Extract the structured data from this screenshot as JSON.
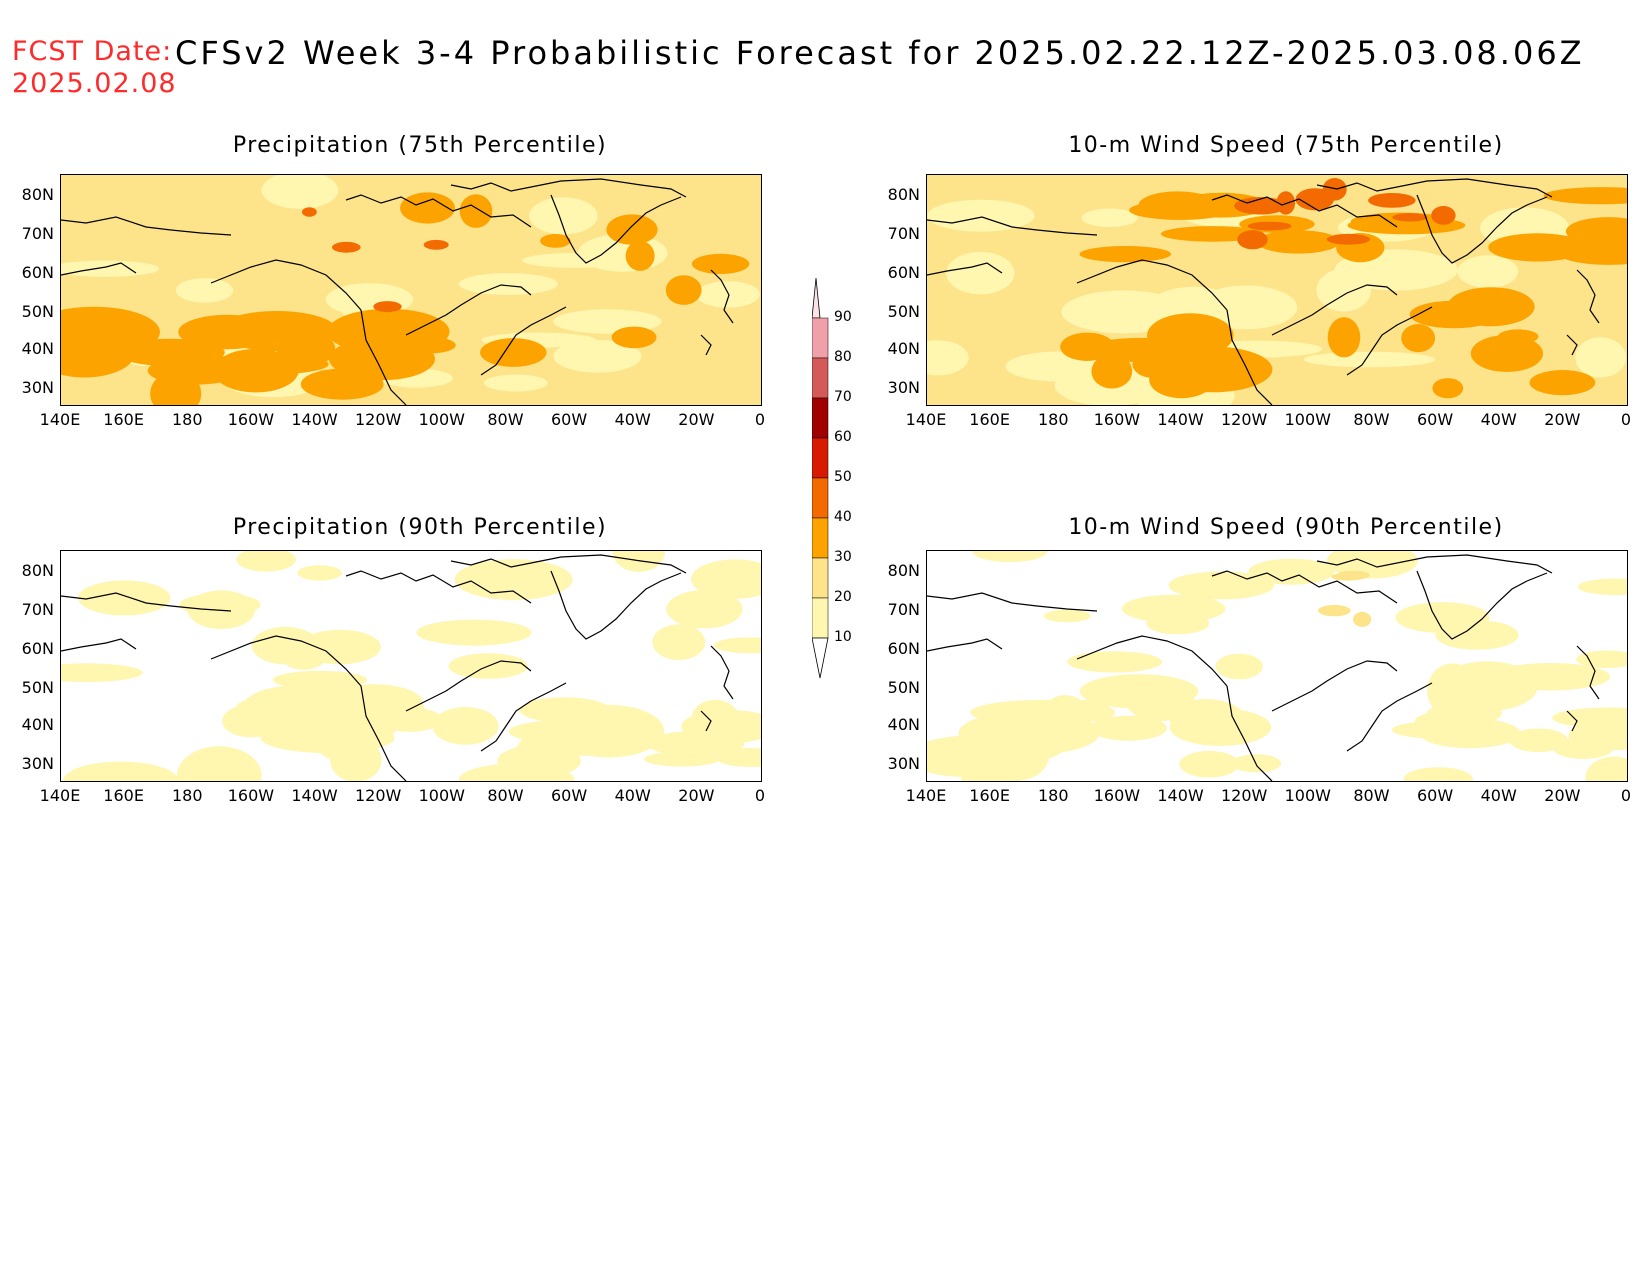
{
  "header": {
    "fcst_label": "FCST Date:",
    "fcst_date": "2025.02.08",
    "title": "CFSv2 Week 3-4 Probabilistic Forecast for 2025.02.22.12Z-2025.03.08.06Z"
  },
  "panels": [
    {
      "title": "Precipitation (75th Percentile)"
    },
    {
      "title": "10-m Wind Speed (75th Percentile)"
    },
    {
      "title": "Precipitation (90th Percentile)"
    },
    {
      "title": "10-m Wind Speed (90th Percentile)"
    }
  ],
  "axes": {
    "lat_labels": [
      "80N",
      "70N",
      "60N",
      "50N",
      "40N",
      "30N"
    ],
    "lon_labels": [
      "140E",
      "160E",
      "180",
      "160W",
      "140W",
      "120W",
      "100W",
      "80W",
      "60W",
      "40W",
      "20W",
      "0"
    ]
  },
  "colorbar": {
    "levels": [
      "90",
      "80",
      "70",
      "60",
      "50",
      "40",
      "30",
      "20",
      "10"
    ],
    "colors": {
      "c10_20": "#fff6b0",
      "c20_30": "#fde38a",
      "c30_40": "#fca300",
      "c40_50": "#f26a00",
      "c50_60": "#d81a00",
      "c60_70": "#a00000",
      "c70_80": "#d45a5a",
      "c80_90": "#f0a0a8",
      "c90_plus": "#fce4e6"
    }
  }
}
